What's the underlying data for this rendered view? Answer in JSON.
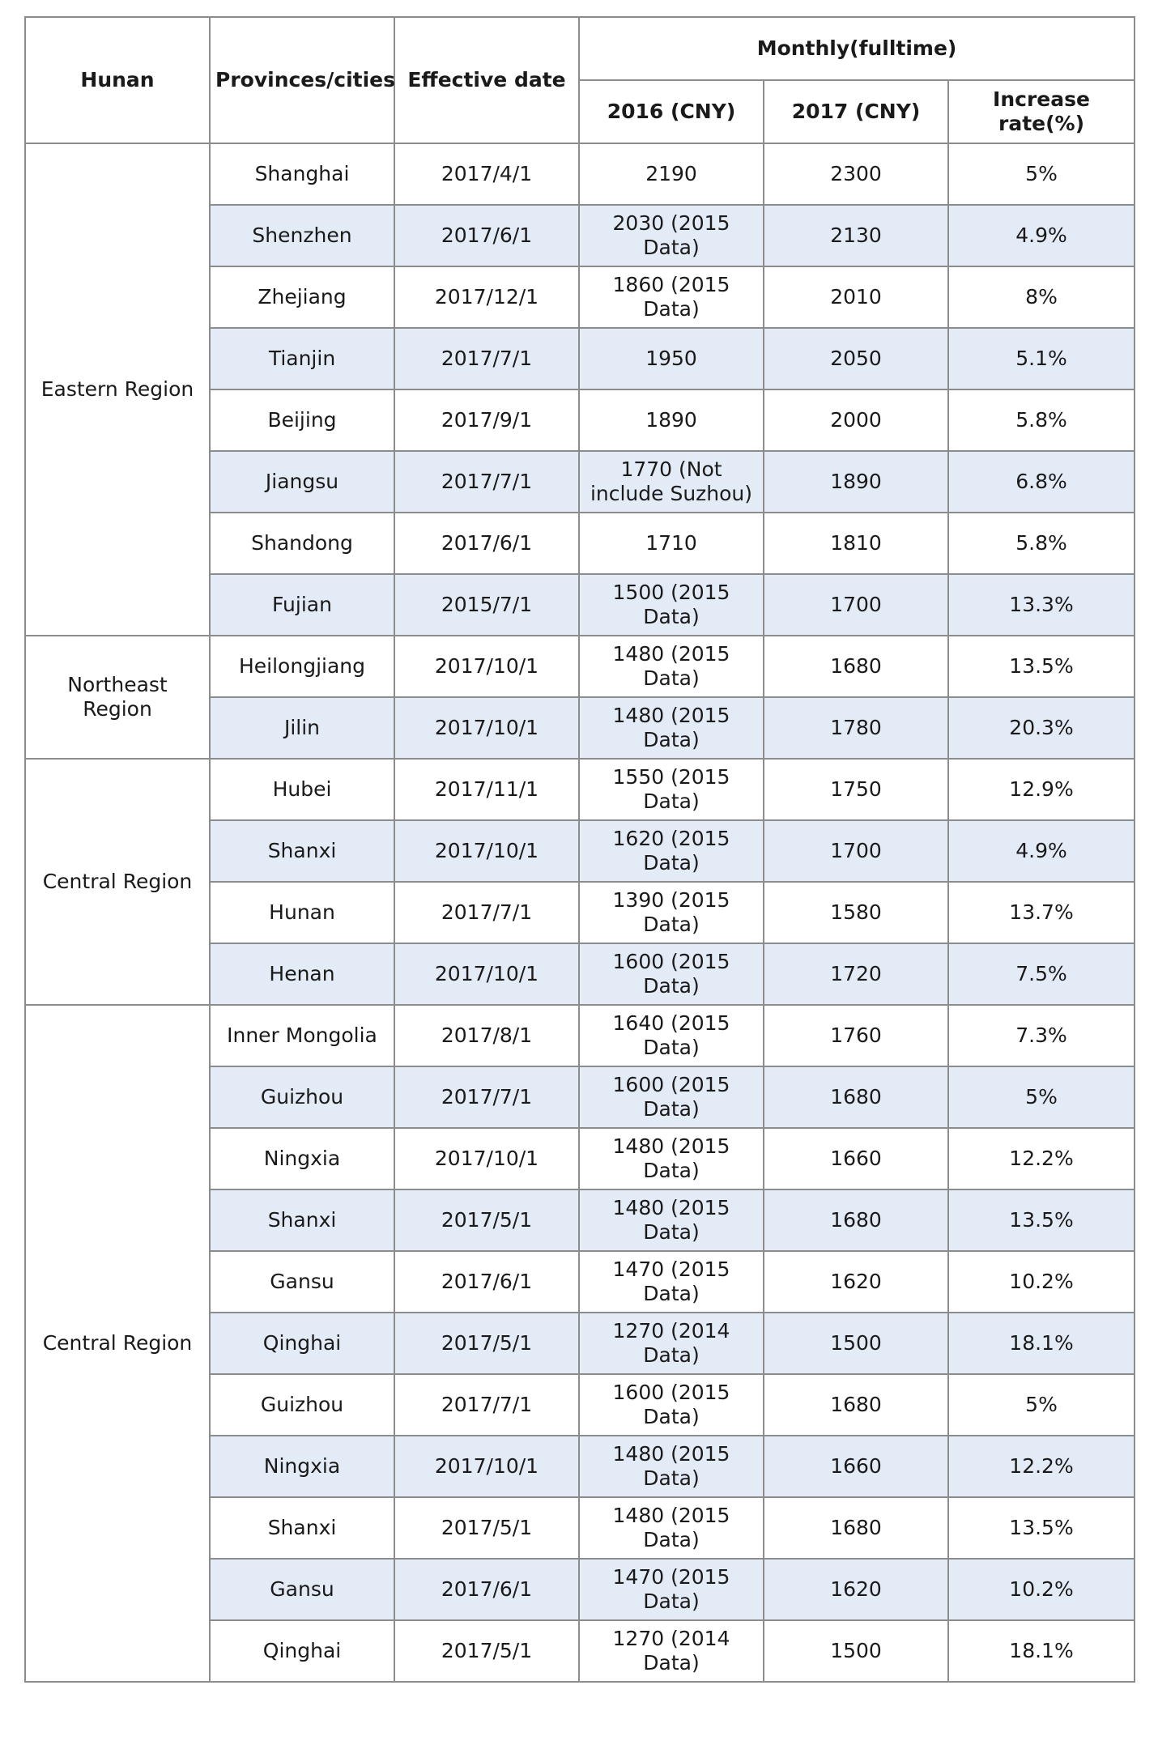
{
  "header": {
    "region_col": "Hunan",
    "province_col": "Provinces/cities",
    "date_col": "Effective date",
    "group_col": "Monthly(fulltime)",
    "y2016_col": "2016 (CNY)",
    "y2017_col": "2017 (CNY)",
    "rate_col": "Increase rate(%)"
  },
  "regions": [
    {
      "name": "Eastern Region",
      "rows": [
        {
          "province": "Shanghai",
          "date": "2017/4/1",
          "y2016": "2190",
          "y2017": "2300",
          "rate": "5%"
        },
        {
          "province": "Shenzhen",
          "date": "2017/6/1",
          "y2016": "2030 (2015 Data)",
          "y2017": "2130",
          "rate": "4.9%"
        },
        {
          "province": "Zhejiang",
          "date": "2017/12/1",
          "y2016": "1860 (2015 Data)",
          "y2017": "2010",
          "rate": "8%"
        },
        {
          "province": "Tianjin",
          "date": "2017/7/1",
          "y2016": "1950",
          "y2017": "2050",
          "rate": "5.1%"
        },
        {
          "province": "Beijing",
          "date": "2017/9/1",
          "y2016": "1890",
          "y2017": "2000",
          "rate": "5.8%"
        },
        {
          "province": "Jiangsu",
          "date": "2017/7/1",
          "y2016": "1770 (Not include Suzhou)",
          "y2017": "1890",
          "rate": "6.8%"
        },
        {
          "province": "Shandong",
          "date": "2017/6/1",
          "y2016": "1710",
          "y2017": "1810",
          "rate": "5.8%"
        },
        {
          "province": "Fujian",
          "date": "2015/7/1",
          "y2016": "1500 (2015 Data)",
          "y2017": "1700",
          "rate": "13.3%"
        }
      ]
    },
    {
      "name": "Northeast Region",
      "rows": [
        {
          "province": "Heilongjiang",
          "date": "2017/10/1",
          "y2016": "1480 (2015 Data)",
          "y2017": "1680",
          "rate": "13.5%"
        },
        {
          "province": "Jilin",
          "date": "2017/10/1",
          "y2016": "1480 (2015 Data)",
          "y2017": "1780",
          "rate": "20.3%"
        }
      ]
    },
    {
      "name": "Central Region",
      "rows": [
        {
          "province": "Hubei",
          "date": "2017/11/1",
          "y2016": "1550 (2015 Data)",
          "y2017": "1750",
          "rate": "12.9%"
        },
        {
          "province": "Shanxi",
          "date": "2017/10/1",
          "y2016": "1620 (2015 Data)",
          "y2017": "1700",
          "rate": "4.9%"
        },
        {
          "province": "Hunan",
          "date": "2017/7/1",
          "y2016": "1390 (2015 Data)",
          "y2017": "1580",
          "rate": "13.7%"
        },
        {
          "province": "Henan",
          "date": "2017/10/1",
          "y2016": "1600 (2015 Data)",
          "y2017": "1720",
          "rate": "7.5%"
        }
      ]
    },
    {
      "name": "Central Region",
      "rows": [
        {
          "province": "Inner Mongolia",
          "date": "2017/8/1",
          "y2016": "1640 (2015 Data)",
          "y2017": "1760",
          "rate": "7.3%"
        },
        {
          "province": "Guizhou",
          "date": "2017/7/1",
          "y2016": "1600 (2015 Data)",
          "y2017": "1680",
          "rate": "5%"
        },
        {
          "province": "Ningxia",
          "date": "2017/10/1",
          "y2016": "1480 (2015 Data)",
          "y2017": "1660",
          "rate": "12.2%"
        },
        {
          "province": "Shanxi",
          "date": "2017/5/1",
          "y2016": "1480 (2015 Data)",
          "y2017": "1680",
          "rate": "13.5%"
        },
        {
          "province": "Gansu",
          "date": "2017/6/1",
          "y2016": "1470 (2015 Data)",
          "y2017": "1620",
          "rate": "10.2%"
        },
        {
          "province": "Qinghai",
          "date": "2017/5/1",
          "y2016": "1270 (2014 Data)",
          "y2017": "1500",
          "rate": "18.1%"
        },
        {
          "province": "Guizhou",
          "date": "2017/7/1",
          "y2016": "1600 (2015 Data)",
          "y2017": "1680",
          "rate": "5%"
        },
        {
          "province": "Ningxia",
          "date": "2017/10/1",
          "y2016": "1480 (2015 Data)",
          "y2017": "1660",
          "rate": "12.2%"
        },
        {
          "province": "Shanxi",
          "date": "2017/5/1",
          "y2016": "1480 (2015 Data)",
          "y2017": "1680",
          "rate": "13.5%"
        },
        {
          "province": "Gansu",
          "date": "2017/6/1",
          "y2016": "1470 (2015 Data)",
          "y2017": "1620",
          "rate": "10.2%"
        },
        {
          "province": "Qinghai",
          "date": "2017/5/1",
          "y2016": "1270 (2014 Data)",
          "y2017": "1500",
          "rate": "18.1%"
        }
      ]
    }
  ]
}
